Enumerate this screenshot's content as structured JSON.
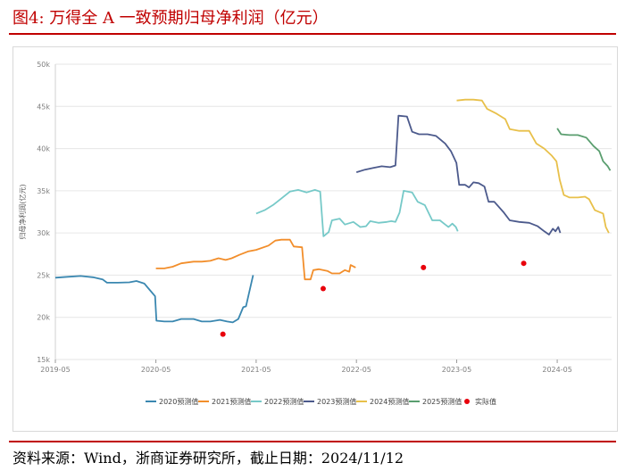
{
  "figure": {
    "title": "图4:  万得全 A 一致预期归母净利润（亿元）",
    "source": "资料来源：Wind，浙商证券研究所，截止日期：2024/11/12"
  },
  "chart_data": {
    "type": "line",
    "title": "",
    "xlabel": "",
    "ylabel": "归母净利润(亿元)",
    "x_ticks": [
      "2019-05",
      "2020-05",
      "2021-05",
      "2022-05",
      "2023-05",
      "2024-05"
    ],
    "y_ticks": [
      "15k",
      "20k",
      "25k",
      "30k",
      "35k",
      "40k",
      "45k",
      "50k"
    ],
    "ylim": [
      15000,
      50000
    ],
    "xlim": [
      "2019-05-01",
      "2024-11-15"
    ],
    "grid": "horizontal",
    "legend_position": "bottom",
    "series": [
      {
        "name": "2020预测值",
        "color": "#3a87b0",
        "points": [
          [
            "2019-05-01",
            24700
          ],
          [
            "2019-06-15",
            24800
          ],
          [
            "2019-08-01",
            24900
          ],
          [
            "2019-09-15",
            24750
          ],
          [
            "2019-10-20",
            24500
          ],
          [
            "2019-11-05",
            24100
          ],
          [
            "2019-12-15",
            24100
          ],
          [
            "2020-01-25",
            24150
          ],
          [
            "2020-02-20",
            24300
          ],
          [
            "2020-03-20",
            24000
          ],
          [
            "2020-04-10",
            23200
          ],
          [
            "2020-04-28",
            22500
          ],
          [
            "2020-05-03",
            19600
          ],
          [
            "2020-06-01",
            19500
          ],
          [
            "2020-07-01",
            19500
          ],
          [
            "2020-08-01",
            19800
          ],
          [
            "2020-09-15",
            19800
          ],
          [
            "2020-10-15",
            19500
          ],
          [
            "2020-11-15",
            19500
          ],
          [
            "2020-12-20",
            19700
          ],
          [
            "2021-01-15",
            19500
          ],
          [
            "2021-02-05",
            19400
          ],
          [
            "2021-02-25",
            19800
          ],
          [
            "2021-03-15",
            21200
          ],
          [
            "2021-03-25",
            21300
          ],
          [
            "2021-04-20",
            25000
          ]
        ]
      },
      {
        "name": "2021预测值",
        "color": "#f28e2b",
        "points": [
          [
            "2020-05-01",
            25800
          ],
          [
            "2020-06-01",
            25800
          ],
          [
            "2020-07-01",
            26000
          ],
          [
            "2020-08-01",
            26400
          ],
          [
            "2020-09-15",
            26600
          ],
          [
            "2020-10-15",
            26600
          ],
          [
            "2020-11-15",
            26700
          ],
          [
            "2020-12-15",
            27000
          ],
          [
            "2021-01-10",
            26800
          ],
          [
            "2021-02-01",
            27000
          ],
          [
            "2021-03-01",
            27400
          ],
          [
            "2021-04-01",
            27800
          ],
          [
            "2021-05-01",
            28000
          ],
          [
            "2021-06-15",
            28500
          ],
          [
            "2021-07-10",
            29100
          ],
          [
            "2021-08-01",
            29200
          ],
          [
            "2021-09-01",
            29200
          ],
          [
            "2021-09-15",
            28400
          ],
          [
            "2021-10-15",
            28300
          ],
          [
            "2021-10-25",
            24500
          ],
          [
            "2021-11-15",
            24500
          ],
          [
            "2021-11-25",
            25600
          ],
          [
            "2021-12-15",
            25700
          ],
          [
            "2022-01-15",
            25500
          ],
          [
            "2022-02-01",
            25200
          ],
          [
            "2022-03-01",
            25200
          ],
          [
            "2022-03-20",
            25600
          ],
          [
            "2022-04-05",
            25400
          ],
          [
            "2022-04-10",
            26200
          ],
          [
            "2022-04-28",
            25900
          ]
        ]
      },
      {
        "name": "2022预测值",
        "color": "#76c9c8",
        "points": [
          [
            "2021-05-01",
            32300
          ],
          [
            "2021-06-01",
            32700
          ],
          [
            "2021-07-01",
            33300
          ],
          [
            "2021-08-01",
            34100
          ],
          [
            "2021-09-01",
            34900
          ],
          [
            "2021-10-01",
            35100
          ],
          [
            "2021-11-01",
            34800
          ],
          [
            "2021-12-01",
            35100
          ],
          [
            "2021-12-20",
            34900
          ],
          [
            "2022-01-01",
            29600
          ],
          [
            "2022-01-20",
            30100
          ],
          [
            "2022-02-01",
            31500
          ],
          [
            "2022-03-01",
            31700
          ],
          [
            "2022-03-20",
            31000
          ],
          [
            "2022-04-20",
            31300
          ],
          [
            "2022-05-15",
            30700
          ],
          [
            "2022-06-05",
            30800
          ],
          [
            "2022-06-20",
            31400
          ],
          [
            "2022-07-20",
            31200
          ],
          [
            "2022-08-20",
            31300
          ],
          [
            "2022-09-05",
            31400
          ],
          [
            "2022-09-20",
            31300
          ],
          [
            "2022-10-05",
            32400
          ],
          [
            "2022-10-20",
            35000
          ],
          [
            "2022-11-20",
            34800
          ],
          [
            "2022-12-10",
            33700
          ],
          [
            "2023-01-05",
            33300
          ],
          [
            "2023-02-01",
            31500
          ],
          [
            "2023-03-01",
            31500
          ],
          [
            "2023-03-20",
            31000
          ],
          [
            "2023-04-01",
            30700
          ],
          [
            "2023-04-15",
            31100
          ],
          [
            "2023-04-28",
            30700
          ],
          [
            "2023-05-05",
            30200
          ]
        ]
      },
      {
        "name": "2023预测值",
        "color": "#4c5a8c",
        "points": [
          [
            "2022-05-01",
            37200
          ],
          [
            "2022-06-01",
            37500
          ],
          [
            "2022-07-01",
            37700
          ],
          [
            "2022-08-01",
            37900
          ],
          [
            "2022-09-01",
            37800
          ],
          [
            "2022-09-20",
            38000
          ],
          [
            "2022-10-01",
            43900
          ],
          [
            "2022-11-01",
            43800
          ],
          [
            "2022-11-20",
            42000
          ],
          [
            "2022-12-15",
            41700
          ],
          [
            "2023-01-15",
            41700
          ],
          [
            "2023-02-15",
            41500
          ],
          [
            "2023-03-20",
            40600
          ],
          [
            "2023-04-10",
            39700
          ],
          [
            "2023-04-30",
            38300
          ],
          [
            "2023-05-10",
            35700
          ],
          [
            "2023-06-01",
            35700
          ],
          [
            "2023-06-15",
            35400
          ],
          [
            "2023-07-01",
            36000
          ],
          [
            "2023-07-20",
            35900
          ],
          [
            "2023-08-10",
            35500
          ],
          [
            "2023-08-25",
            33700
          ],
          [
            "2023-09-15",
            33700
          ],
          [
            "2023-10-20",
            32400
          ],
          [
            "2023-11-10",
            31500
          ],
          [
            "2023-12-15",
            31300
          ],
          [
            "2024-01-20",
            31200
          ],
          [
            "2024-02-20",
            30800
          ],
          [
            "2024-03-15",
            30200
          ],
          [
            "2024-04-01",
            29800
          ],
          [
            "2024-04-15",
            30500
          ],
          [
            "2024-04-25",
            30200
          ],
          [
            "2024-05-05",
            30700
          ],
          [
            "2024-05-12",
            30000
          ]
        ]
      },
      {
        "name": "2024预测值",
        "color": "#e8c04a",
        "points": [
          [
            "2023-05-01",
            45700
          ],
          [
            "2023-06-01",
            45800
          ],
          [
            "2023-07-01",
            45800
          ],
          [
            "2023-08-01",
            45700
          ],
          [
            "2023-08-20",
            44700
          ],
          [
            "2023-09-20",
            44200
          ],
          [
            "2023-10-25",
            43500
          ],
          [
            "2023-11-10",
            42300
          ],
          [
            "2023-12-15",
            42100
          ],
          [
            "2024-01-20",
            42100
          ],
          [
            "2024-02-15",
            40600
          ],
          [
            "2024-03-15",
            40000
          ],
          [
            "2024-04-10",
            39200
          ],
          [
            "2024-04-28",
            38500
          ],
          [
            "2024-05-10",
            36300
          ],
          [
            "2024-05-25",
            34500
          ],
          [
            "2024-06-15",
            34200
          ],
          [
            "2024-07-15",
            34200
          ],
          [
            "2024-08-10",
            34300
          ],
          [
            "2024-08-25",
            34000
          ],
          [
            "2024-09-15",
            32700
          ],
          [
            "2024-10-15",
            32300
          ],
          [
            "2024-10-25",
            30700
          ],
          [
            "2024-11-05",
            30000
          ]
        ]
      },
      {
        "name": "2025预测值",
        "color": "#5a9e6f",
        "points": [
          [
            "2024-05-01",
            42400
          ],
          [
            "2024-05-15",
            41700
          ],
          [
            "2024-06-15",
            41600
          ],
          [
            "2024-07-15",
            41600
          ],
          [
            "2024-08-15",
            41300
          ],
          [
            "2024-09-10",
            40300
          ],
          [
            "2024-10-01",
            39700
          ],
          [
            "2024-10-15",
            38500
          ],
          [
            "2024-11-01",
            37900
          ],
          [
            "2024-11-10",
            37400
          ]
        ]
      }
    ],
    "actual": {
      "name": "实际值",
      "color": "#e8000b",
      "points": [
        [
          "2020-12-31",
          18000
        ],
        [
          "2021-12-31",
          23400
        ],
        [
          "2022-12-31",
          25900
        ],
        [
          "2023-12-31",
          26400
        ]
      ]
    }
  }
}
